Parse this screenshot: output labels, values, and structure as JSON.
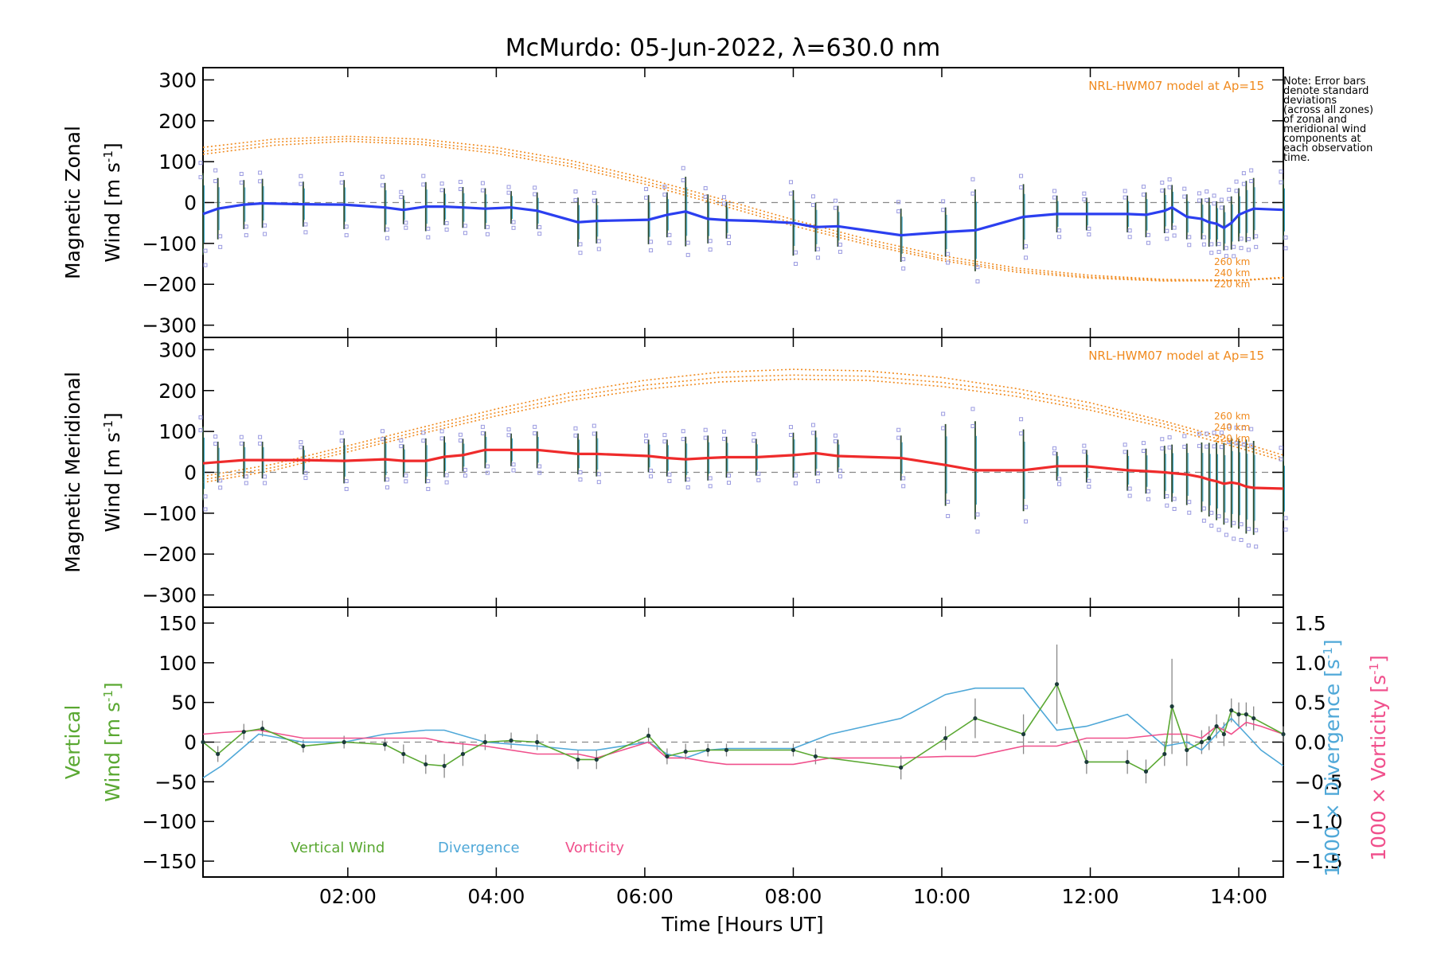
{
  "title": "McMurdo: 05-Jun-2022, λ=630.0 nm",
  "note": "Note: Error bars\ndenote standard\ndeviations\n(across all zones)\nof zonal and\nmeridional wind\ncomponents at\neach observation\ntime.",
  "xlabel": "Time [Hours UT]",
  "x_ticks": [
    "02:00",
    "04:00",
    "06:00",
    "08:00",
    "10:00",
    "12:00",
    "14:00"
  ],
  "x_tick_hours": [
    2,
    4,
    6,
    8,
    10,
    12,
    14
  ],
  "xlim": [
    0.05,
    14.6
  ],
  "colors": {
    "zonal": "#2b3ff0",
    "meridional": "#ef2b2b",
    "model": "#f08a1e",
    "vertical": "#5aa832",
    "divergence": "#4fa8d8",
    "vorticity": "#f0508c",
    "samples": "#9a9ae0"
  },
  "panels": {
    "zonal": {
      "ylabel1": "Magnetic Zonal",
      "ylabel2": "Wind [m s",
      "ylabel_sup": "-1",
      "ylabel_end": "]",
      "model_label": "NRL-HWM07 model at Ap=15",
      "alt_labels": [
        "260 km",
        "240 km",
        "220 km"
      ],
      "y_ticks": [
        "300",
        "200",
        "100",
        "0",
        "−100",
        "−200",
        "−300"
      ]
    },
    "meridional": {
      "ylabel1": "Magnetic Meridional",
      "ylabel2": "Wind [m s",
      "ylabel_sup": "-1",
      "ylabel_end": "]",
      "model_label": "NRL-HWM07 model at Ap=15",
      "alt_labels": [
        "260 km",
        "240 km",
        "220 km"
      ],
      "y_ticks": [
        "300",
        "200",
        "100",
        "0",
        "−100",
        "−200",
        "−300"
      ]
    },
    "vertical": {
      "ylabel1": "Vertical",
      "ylabel2": "Wind [m s",
      "ylabel_sup": "-1",
      "ylabel_end": "]",
      "right_label_div": "1000 × Divergence [s",
      "right_label_vort": "1000 × Vorticity [s",
      "right_sup": "-1",
      "right_end": "]",
      "y_ticks": [
        "150",
        "100",
        "50",
        "0",
        "−50",
        "−100",
        "−150"
      ],
      "y2_ticks": [
        "1.5",
        "1.0",
        "0.5",
        "0.0",
        "−0.5",
        "−1.0",
        "−1.5"
      ],
      "legend": [
        "Vertical Wind",
        "Divergence",
        "Vorticity"
      ]
    }
  },
  "chart_data": [
    {
      "type": "line",
      "panel": "zonal",
      "ylim": [
        -330,
        330
      ],
      "series": [
        {
          "role": "observed",
          "x": [
            0.05,
            0.25,
            0.6,
            0.85,
            1.4,
            1.95,
            2.5,
            2.75,
            3.05,
            3.3,
            3.55,
            3.85,
            4.2,
            4.55,
            5.1,
            5.35,
            6.05,
            6.3,
            6.55,
            6.85,
            7.1,
            7.5,
            8.0,
            8.3,
            8.6,
            9.45,
            10.05,
            10.45,
            11.1,
            11.55,
            11.95,
            12.5,
            12.75,
            13.0,
            13.1,
            13.3,
            13.5,
            13.6,
            13.7,
            13.8,
            13.9,
            14.0,
            14.1,
            14.2,
            14.6
          ],
          "y": [
            -28,
            -15,
            -5,
            -2,
            -4,
            -5,
            -12,
            -18,
            -10,
            -10,
            -12,
            -15,
            -12,
            -20,
            -48,
            -45,
            -42,
            -30,
            -22,
            -40,
            -43,
            -45,
            -50,
            -60,
            -58,
            -80,
            -72,
            -68,
            -35,
            -28,
            -28,
            -28,
            -30,
            -20,
            -12,
            -35,
            -40,
            -48,
            -52,
            -62,
            -50,
            -30,
            -22,
            -15,
            -18
          ],
          "err": [
            100,
            75,
            60,
            60,
            55,
            60,
            60,
            35,
            60,
            45,
            50,
            50,
            40,
            45,
            60,
            55,
            60,
            55,
            85,
            60,
            45,
            0,
            80,
            60,
            50,
            65,
            60,
            100,
            80,
            45,
            40,
            45,
            55,
            55,
            55,
            55,
            50,
            60,
            55,
            55,
            65,
            65,
            75,
            75,
            75
          ]
        },
        {
          "role": "model",
          "name": "260 km",
          "x": [
            0.05,
            1,
            2,
            3,
            4,
            5,
            6,
            7,
            8,
            9,
            10,
            11,
            12,
            13,
            14,
            14.6
          ],
          "y": [
            135,
            155,
            162,
            155,
            135,
            103,
            60,
            10,
            -42,
            -90,
            -130,
            -160,
            -178,
            -188,
            -190,
            -183
          ]
        },
        {
          "role": "model",
          "name": "240 km",
          "x": [
            0.05,
            1,
            2,
            3,
            4,
            5,
            6,
            7,
            8,
            9,
            10,
            11,
            12,
            13,
            14,
            14.6
          ],
          "y": [
            125,
            148,
            156,
            148,
            127,
            95,
            52,
            2,
            -50,
            -97,
            -137,
            -165,
            -182,
            -190,
            -191,
            -183
          ]
        },
        {
          "role": "model",
          "name": "220 km",
          "x": [
            0.05,
            1,
            2,
            3,
            4,
            5,
            6,
            7,
            8,
            9,
            10,
            11,
            12,
            13,
            14,
            14.6
          ],
          "y": [
            118,
            140,
            150,
            142,
            120,
            88,
            45,
            -5,
            -57,
            -103,
            -142,
            -170,
            -185,
            -192,
            -191,
            -185
          ]
        }
      ]
    },
    {
      "type": "line",
      "panel": "meridional",
      "ylim": [
        -330,
        330
      ],
      "series": [
        {
          "role": "observed",
          "x": [
            0.05,
            0.25,
            0.6,
            0.85,
            1.4,
            1.95,
            2.5,
            2.75,
            3.05,
            3.3,
            3.55,
            3.85,
            4.2,
            4.55,
            5.1,
            5.35,
            6.05,
            6.3,
            6.55,
            6.85,
            7.1,
            7.5,
            8.0,
            8.3,
            8.6,
            9.45,
            10.05,
            10.45,
            11.1,
            11.55,
            11.95,
            12.5,
            12.75,
            13.0,
            13.1,
            13.3,
            13.5,
            13.6,
            13.7,
            13.8,
            13.9,
            14.0,
            14.1,
            14.2,
            14.6
          ],
          "y": [
            22,
            25,
            30,
            30,
            30,
            28,
            32,
            28,
            28,
            38,
            42,
            55,
            55,
            55,
            45,
            45,
            40,
            35,
            32,
            35,
            37,
            37,
            42,
            47,
            40,
            35,
            18,
            5,
            5,
            15,
            15,
            5,
            3,
            0,
            -2,
            -5,
            -12,
            -18,
            -22,
            -28,
            -25,
            -28,
            -35,
            -38,
            -40
          ],
          "err": [
            90,
            50,
            45,
            45,
            35,
            55,
            55,
            40,
            55,
            50,
            40,
            45,
            40,
            45,
            50,
            55,
            40,
            45,
            55,
            55,
            50,
            45,
            55,
            55,
            40,
            55,
            100,
            120,
            100,
            35,
            40,
            50,
            55,
            65,
            70,
            75,
            85,
            90,
            95,
            100,
            110,
            110,
            115,
            115,
            80
          ]
        },
        {
          "role": "model",
          "name": "260 km",
          "x": [
            0.05,
            1,
            2,
            3,
            4,
            5,
            6,
            7,
            8,
            9,
            10,
            11,
            12,
            13,
            14,
            14.6
          ],
          "y": [
            -10,
            20,
            65,
            110,
            155,
            195,
            225,
            245,
            252,
            248,
            232,
            205,
            170,
            125,
            75,
            42
          ]
        },
        {
          "role": "model",
          "name": "240 km",
          "x": [
            0.05,
            1,
            2,
            3,
            4,
            5,
            6,
            7,
            8,
            9,
            10,
            11,
            12,
            13,
            14,
            14.6
          ],
          "y": [
            -18,
            12,
            57,
            102,
            146,
            185,
            213,
            232,
            238,
            235,
            220,
            195,
            160,
            118,
            68,
            35
          ]
        },
        {
          "role": "model",
          "name": "220 km",
          "x": [
            0.05,
            1,
            2,
            3,
            4,
            5,
            6,
            7,
            8,
            9,
            10,
            11,
            12,
            13,
            14,
            14.6
          ],
          "y": [
            -25,
            5,
            50,
            95,
            138,
            176,
            203,
            221,
            228,
            225,
            210,
            186,
            152,
            110,
            60,
            28
          ]
        }
      ]
    },
    {
      "type": "line",
      "panel": "vertical",
      "ylim": [
        -170,
        170
      ],
      "y2lim": [
        -1.7,
        1.7
      ],
      "series": [
        {
          "name": "Vertical Wind",
          "axis": "left",
          "x": [
            0.05,
            0.25,
            0.6,
            0.85,
            1.4,
            1.95,
            2.5,
            2.75,
            3.05,
            3.3,
            3.55,
            3.85,
            4.2,
            4.55,
            5.1,
            5.35,
            6.05,
            6.3,
            6.55,
            6.85,
            7.1,
            8.0,
            8.3,
            9.45,
            10.05,
            10.45,
            11.1,
            11.55,
            11.95,
            12.5,
            12.75,
            13.0,
            13.1,
            13.3,
            13.5,
            13.6,
            13.7,
            13.8,
            13.9,
            14.0,
            14.1,
            14.2,
            14.6
          ],
          "y": [
            0,
            -15,
            13,
            17,
            -5,
            0,
            -3,
            -15,
            -28,
            -30,
            -15,
            0,
            2,
            0,
            -22,
            -22,
            8,
            -18,
            -12,
            -10,
            -10,
            -10,
            -18,
            -32,
            5,
            30,
            10,
            73,
            -25,
            -25,
            -37,
            -15,
            45,
            -10,
            0,
            5,
            20,
            10,
            40,
            35,
            35,
            30,
            10
          ],
          "err": [
            0,
            10,
            10,
            10,
            8,
            8,
            8,
            12,
            12,
            15,
            15,
            10,
            10,
            10,
            12,
            12,
            10,
            10,
            10,
            8,
            8,
            8,
            10,
            15,
            15,
            25,
            25,
            50,
            15,
            15,
            15,
            15,
            60,
            20,
            15,
            15,
            15,
            15,
            15,
            15,
            15,
            15,
            10
          ]
        },
        {
          "name": "Divergence",
          "axis": "right",
          "x": [
            0.05,
            0.3,
            0.8,
            1.4,
            1.95,
            2.5,
            3.05,
            3.3,
            3.85,
            4.55,
            5.1,
            5.35,
            6.05,
            6.3,
            6.55,
            6.85,
            7.1,
            7.5,
            8.0,
            8.5,
            9.45,
            10.05,
            10.45,
            11.1,
            11.55,
            11.95,
            12.5,
            13.0,
            13.3,
            13.5,
            13.7,
            13.9,
            14.1,
            14.3,
            14.6
          ],
          "y": [
            -0.45,
            -0.3,
            0.1,
            0,
            0,
            0.1,
            0.15,
            0.15,
            0,
            -0.05,
            -0.1,
            -0.1,
            0,
            -0.15,
            -0.2,
            -0.1,
            -0.08,
            -0.08,
            -0.08,
            0.1,
            0.3,
            0.6,
            0.68,
            0.68,
            0.15,
            0.2,
            0.35,
            -0.05,
            0,
            -0.1,
            0.1,
            0.3,
            0.1,
            -0.1,
            -0.3
          ]
        },
        {
          "name": "Vorticity",
          "axis": "right",
          "x": [
            0.05,
            0.3,
            0.8,
            1.4,
            1.95,
            2.5,
            3.05,
            3.3,
            3.85,
            4.55,
            5.1,
            5.35,
            6.05,
            6.3,
            6.55,
            6.85,
            7.1,
            7.5,
            8.0,
            8.5,
            9.45,
            10.05,
            10.45,
            11.1,
            11.55,
            11.95,
            12.5,
            13.0,
            13.3,
            13.5,
            13.7,
            13.9,
            14.1,
            14.3,
            14.6
          ],
          "y": [
            0.1,
            0.12,
            0.15,
            0.05,
            0.05,
            0.05,
            0.05,
            0.0,
            -0.05,
            -0.15,
            -0.15,
            -0.2,
            0,
            -0.2,
            -0.2,
            -0.25,
            -0.28,
            -0.28,
            -0.28,
            -0.2,
            -0.2,
            -0.18,
            -0.18,
            -0.05,
            -0.05,
            0.05,
            0.05,
            0.1,
            0.1,
            0.05,
            0.2,
            0.1,
            0.25,
            0.2,
            0.1
          ]
        }
      ]
    }
  ]
}
